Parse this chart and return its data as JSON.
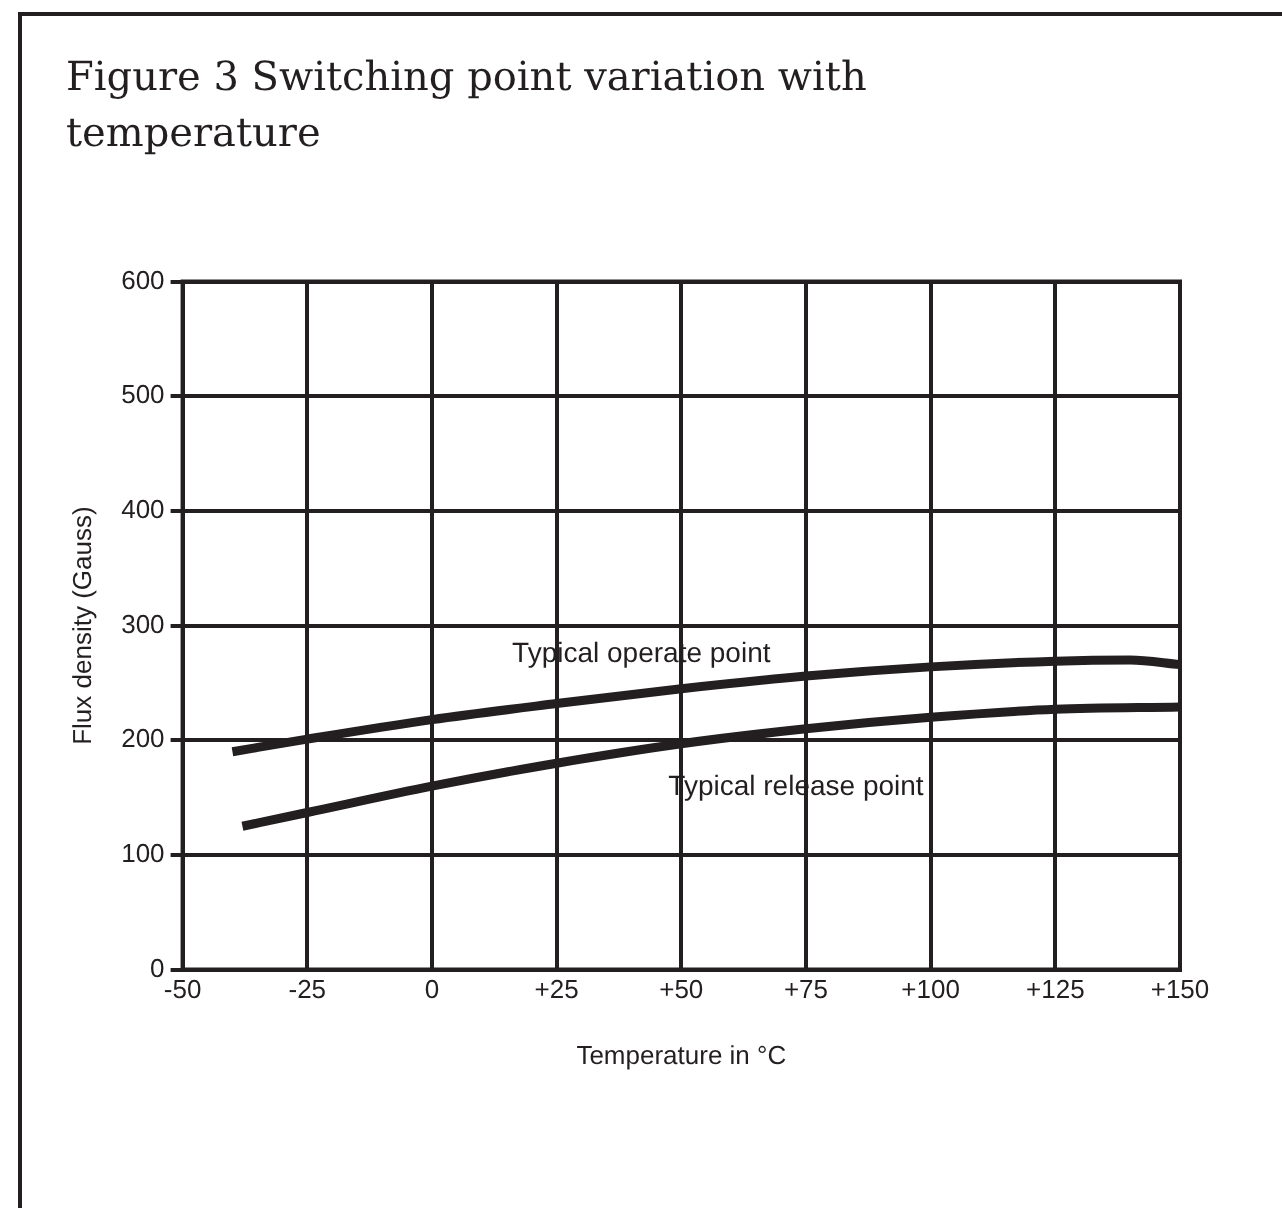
{
  "chart_data": {
    "type": "line",
    "title": "Figure 3 Switching point variation with temperature",
    "xlabel": "Temperature in °C",
    "ylabel": "Flux density (Gauss)",
    "series": [
      {
        "name": "Typical operate point",
        "color": "#231f20",
        "x": [
          -40,
          -25,
          0,
          25,
          50,
          75,
          100,
          125,
          140,
          150
        ],
        "values": [
          190,
          201,
          218,
          232,
          245,
          256,
          264,
          269,
          270,
          266
        ]
      },
      {
        "name": "Typical release point",
        "color": "#231f20",
        "x": [
          -38,
          -25,
          0,
          25,
          50,
          75,
          100,
          125,
          150
        ],
        "values": [
          125,
          137,
          160,
          180,
          197,
          210,
          220,
          227,
          229
        ]
      }
    ],
    "xlim": [
      -50,
      150
    ],
    "xticks": [
      -50,
      -25,
      0,
      {
        "value": 25,
        "label": "+25"
      },
      {
        "value": 50,
        "label": "+50"
      },
      {
        "value": 75,
        "label": "+75"
      },
      {
        "value": 100,
        "label": "+100"
      },
      {
        "value": 125,
        "label": "+125"
      },
      {
        "value": 150,
        "label": "+150"
      }
    ],
    "ylim": [
      0,
      600
    ],
    "yticks": [
      0,
      100,
      200,
      300,
      400,
      500,
      600
    ],
    "grid": true,
    "legend": false,
    "marker": "none",
    "line_style": "solid"
  }
}
